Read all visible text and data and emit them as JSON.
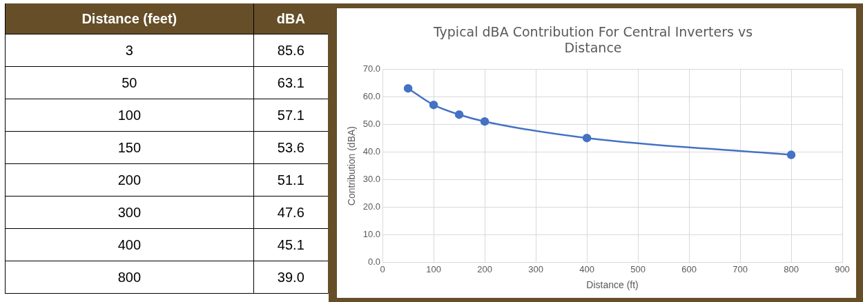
{
  "chart_data": [
    {
      "type": "other",
      "xlabel": "Distance (feet)",
      "ylabel": "dBA",
      "categories": [
        "3",
        "50",
        "100",
        "150",
        "200",
        "300",
        "400",
        "800"
      ],
      "value_labels": [
        "85.6",
        "63.1",
        "57.1",
        "53.6",
        "51.1",
        "47.6",
        "45.1",
        "39.0"
      ]
    },
    {
      "type": "line",
      "title": "Typical dBA Contribution For Central Inverters vs Distance",
      "xlabel": "Distance (ft)",
      "ylabel": "Contribution (dBA)",
      "x": [
        50,
        100,
        150,
        200,
        400,
        800
      ],
      "series": [
        {
          "color": "#4472c4",
          "values": [
            63.1,
            57.1,
            53.6,
            51.1,
            45.1,
            39.0
          ]
        }
      ],
      "xlim": [
        0,
        900
      ],
      "xticks": [
        0,
        100,
        200,
        300,
        400,
        500,
        600,
        700,
        800,
        900
      ],
      "ylim": [
        0,
        70
      ],
      "yticks": [
        {
          "value": 0,
          "label": "0.0"
        },
        {
          "value": 10,
          "label": "10.0"
        },
        {
          "value": 20,
          "label": "20.0"
        },
        {
          "value": 30,
          "label": "30.0"
        },
        {
          "value": 40,
          "label": "40.0"
        },
        {
          "value": 50,
          "label": "50.0"
        },
        {
          "value": 60,
          "label": "60.0"
        },
        {
          "value": 70,
          "label": "70.0"
        }
      ],
      "grid": true,
      "marker": "circle",
      "legend": false
    }
  ]
}
